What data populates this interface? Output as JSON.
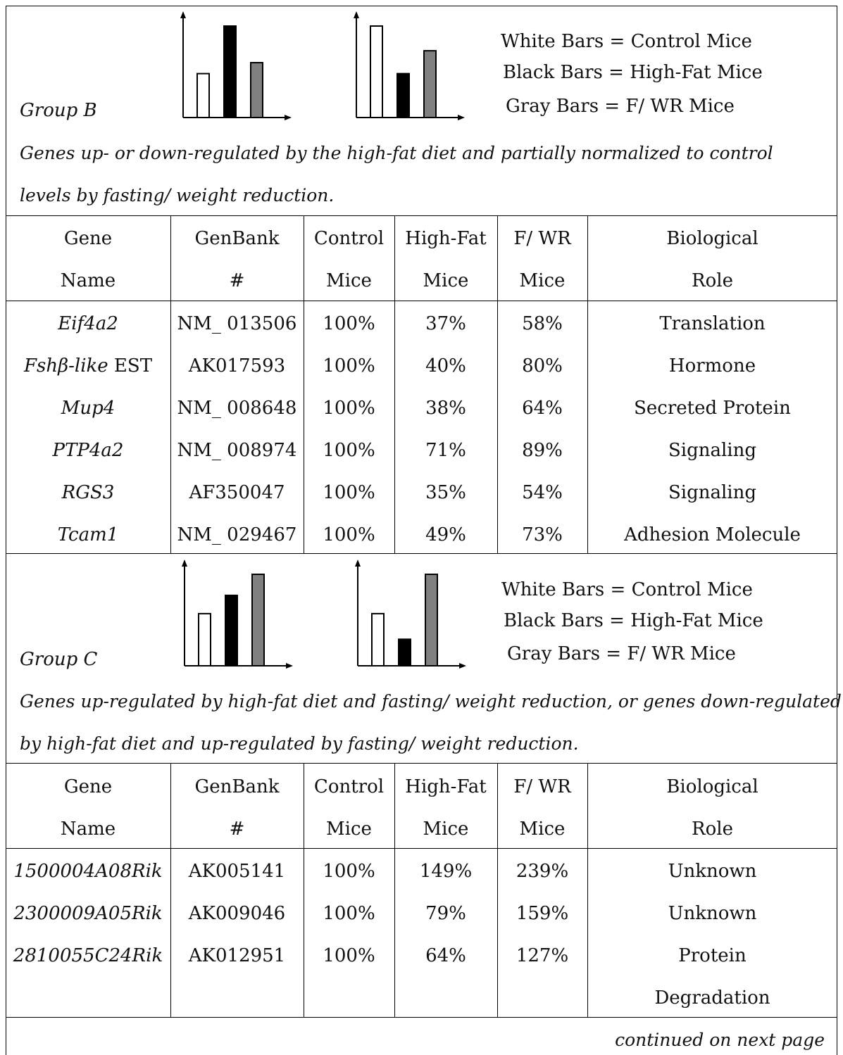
{
  "legend": {
    "white": "White Bars = Control Mice",
    "black": "Black Bars = High-Fat Mice",
    "gray": "Gray Bars = F/ WR Mice"
  },
  "colors": {
    "white_bar": "#ffffff",
    "black_bar": "#000000",
    "gray_bar": "#808080"
  },
  "columns": [
    {
      "line1": "Gene",
      "line2": "Name"
    },
    {
      "line1": "GenBank",
      "line2": "#"
    },
    {
      "line1": "Control",
      "line2": "Mice"
    },
    {
      "line1": "High-Fat",
      "line2": "Mice"
    },
    {
      "line1": "F/ WR",
      "line2": "Mice"
    },
    {
      "line1": "Biological",
      "line2": "Role"
    }
  ],
  "groupB": {
    "label": "Group B",
    "caption_line1": "Genes up- or down-regulated by the high-fat diet and partially normalized to control",
    "caption_line2": "levels by fasting/ weight reduction.",
    "rows": [
      {
        "gene": "Eif4a2",
        "genbank": "NM_ 013506",
        "control": "100%",
        "highfat": "37%",
        "fwr": "58%",
        "role": "Translation"
      },
      {
        "gene": "Fshβ-like",
        "gene_suffix": " EST",
        "genbank": "AK017593",
        "control": "100%",
        "highfat": "40%",
        "fwr": "80%",
        "role": "Hormone"
      },
      {
        "gene": "Mup4",
        "genbank": "NM_ 008648",
        "control": "100%",
        "highfat": "38%",
        "fwr": "64%",
        "role": "Secreted Protein"
      },
      {
        "gene": "PTP4a2",
        "genbank": "NM_ 008974",
        "control": "100%",
        "highfat": "71%",
        "fwr": "89%",
        "role": "Signaling"
      },
      {
        "gene": "RGS3",
        "genbank": "AF350047",
        "control": "100%",
        "highfat": "35%",
        "fwr": "54%",
        "role": "Signaling"
      },
      {
        "gene": "Tcam1",
        "genbank": "NM_ 029467",
        "control": "100%",
        "highfat": "49%",
        "fwr": "73%",
        "role": "Adhesion Molecule"
      }
    ]
  },
  "groupC": {
    "label": "Group C",
    "caption_line1": "Genes up-regulated by high-fat diet and fasting/ weight reduction, or genes down-regulated",
    "caption_line2": "by high-fat diet and up-regulated by fasting/ weight reduction.",
    "rows": [
      {
        "gene": "1500004A08Rik",
        "genbank": "AK005141",
        "control": "100%",
        "highfat": "149%",
        "fwr": "239%",
        "role": "Unknown"
      },
      {
        "gene": "2300009A05Rik",
        "genbank": "AK009046",
        "control": "100%",
        "highfat": "79%",
        "fwr": "159%",
        "role": "Unknown"
      },
      {
        "gene": "2810055C24Rik",
        "genbank": "AK012951",
        "control": "100%",
        "highfat": "64%",
        "fwr": "127%",
        "role": "Protein",
        "role_line2": "Degradation"
      }
    ]
  },
  "mini_charts": {
    "groupB": [
      {
        "values": [
          0.48,
          1.0,
          0.6
        ]
      },
      {
        "values": [
          1.0,
          0.48,
          0.73
        ]
      }
    ],
    "groupC": [
      {
        "values": [
          0.57,
          0.77,
          1.0
        ]
      },
      {
        "values": [
          0.57,
          0.29,
          1.0
        ]
      }
    ]
  },
  "footer": "continued on next page"
}
